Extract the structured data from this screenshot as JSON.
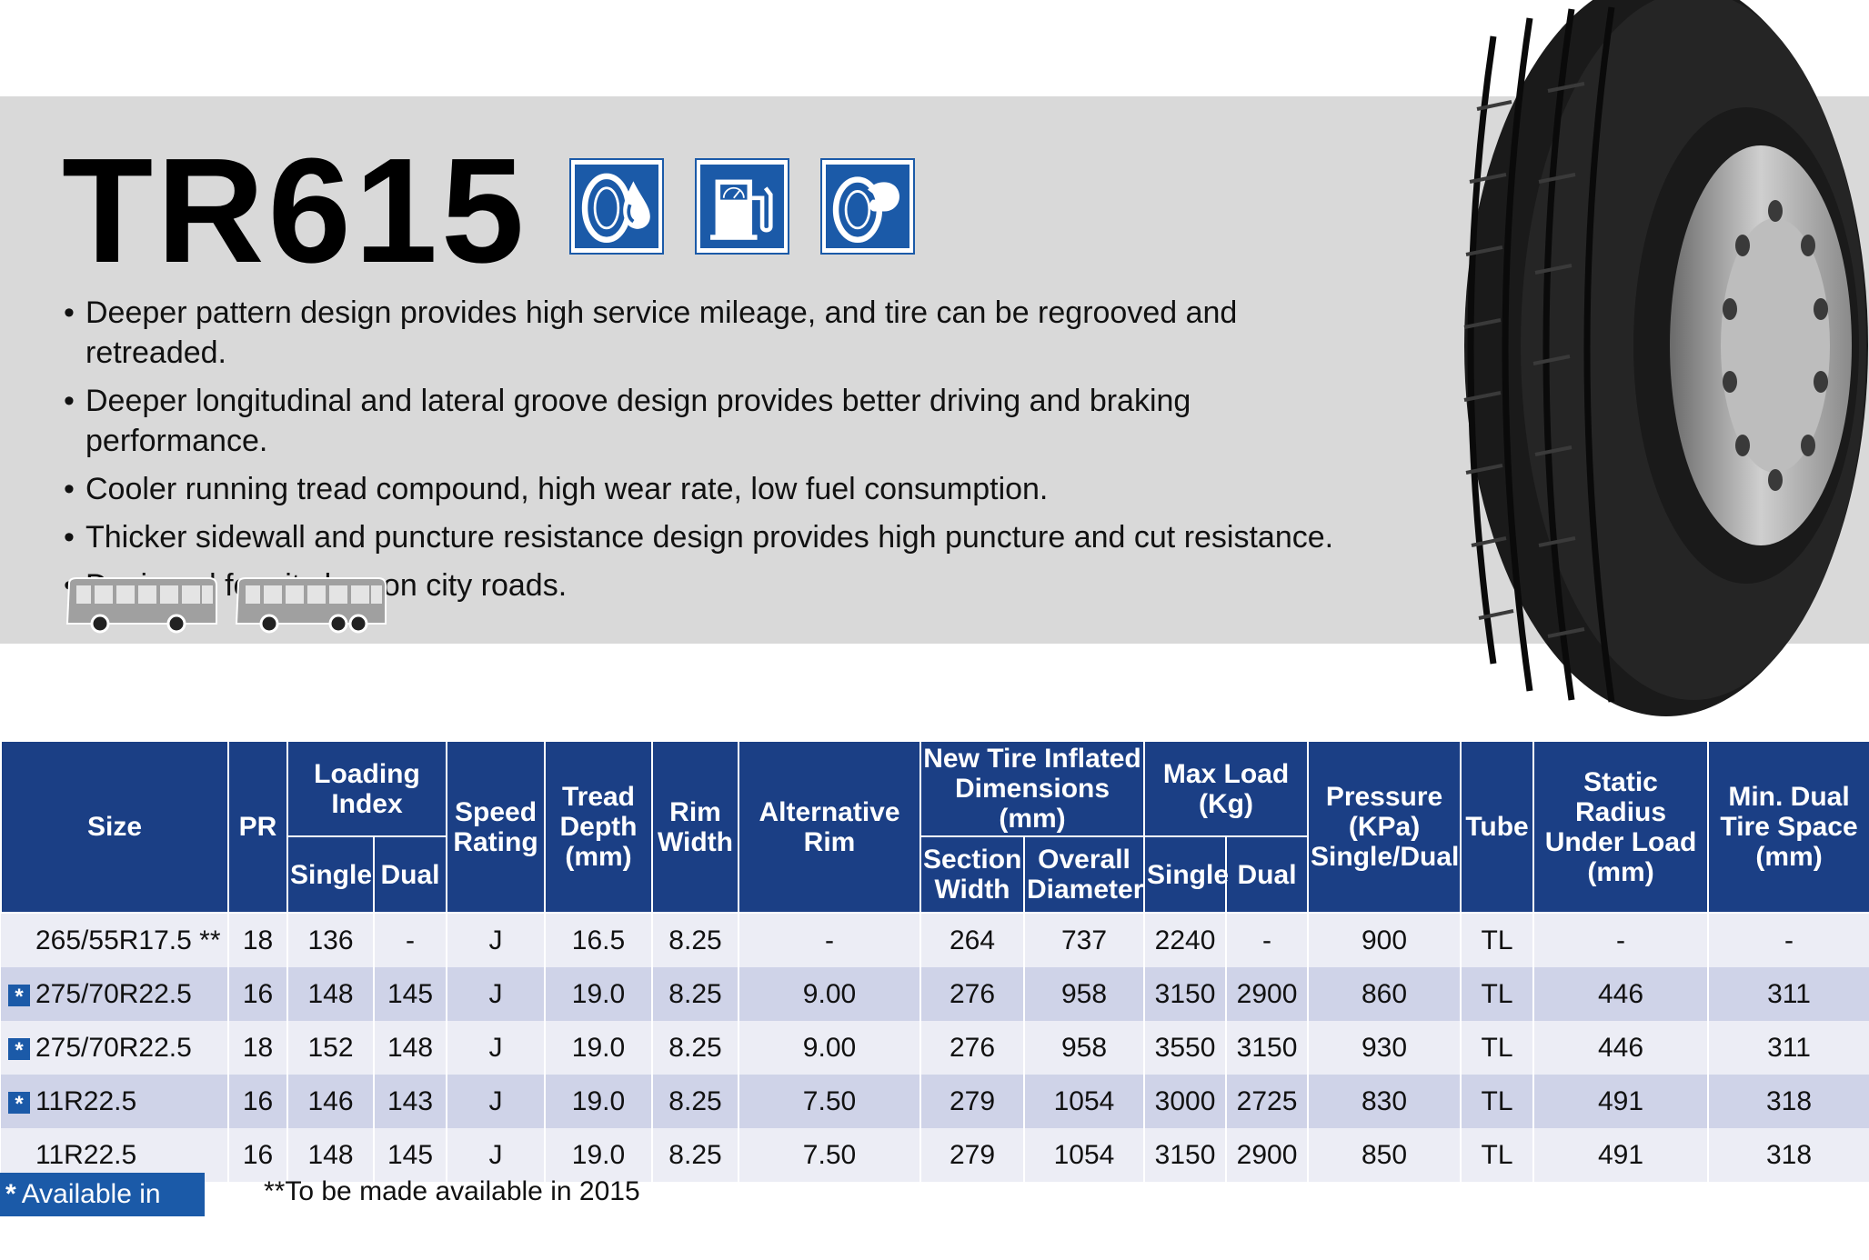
{
  "title": "TR615",
  "feature_icons": [
    "tire-wet-grip-icon",
    "fuel-efficiency-icon",
    "tire-strength-icon"
  ],
  "bullets": [
    "Deeper pattern design provides high service mileage, and tire can be regrooved and retreaded.",
    "Deeper longitudinal and lateral groove design provides better driving and braking performance.",
    "Cooler running tread compound, high wear rate, low fuel consumption.",
    "Thicker sidewall and puncture resistance design provides high puncture and cut resistance.",
    "Designed for city bus on city roads."
  ],
  "vehicle_icons": [
    "city-bus-two-axle-icon",
    "city-bus-three-axle-icon"
  ],
  "colors": {
    "header_blue": "#1b3f85",
    "accent_blue": "#1b5aa8",
    "band_gray": "#d9d9d9",
    "row_light": "#ecedf5",
    "row_dark": "#cfd3e8"
  },
  "table": {
    "headers": {
      "size": "Size",
      "pr": "PR",
      "loading_index": "Loading Index",
      "li_single": "Single",
      "li_dual": "Dual",
      "speed_rating": "Speed Rating",
      "tread_depth": "Tread Depth (mm)",
      "rim_width": "Rim Width",
      "alt_rim": "Alternative Rim",
      "new_tire_dims": "New Tire Inflated Dimensions (mm)",
      "section_width": "Section Width",
      "overall_diameter": "Overall Diameter",
      "max_load": "Max Load (Kg)",
      "ml_single": "Single",
      "ml_dual": "Dual",
      "pressure": "Pressure (KPa) Single/Dual",
      "tube": "Tube",
      "static_radius": "Static Radius Under Load (mm)",
      "min_dual": "Min. Dual Tire Space (mm)"
    },
    "rows": [
      {
        "eu": false,
        "size": "265/55R17.5 **",
        "pr": "18",
        "li_single": "136",
        "li_dual": "-",
        "speed": "J",
        "tread": "16.5",
        "rim": "8.25",
        "alt_rim": "-",
        "section_width": "264",
        "overall_diameter": "737",
        "ml_single": "2240",
        "ml_dual": "-",
        "pressure": "900",
        "tube": "TL",
        "static_radius": "-",
        "min_dual": "-"
      },
      {
        "eu": true,
        "size": "275/70R22.5",
        "pr": "16",
        "li_single": "148",
        "li_dual": "145",
        "speed": "J",
        "tread": "19.0",
        "rim": "8.25",
        "alt_rim": "9.00",
        "section_width": "276",
        "overall_diameter": "958",
        "ml_single": "3150",
        "ml_dual": "2900",
        "pressure": "860",
        "tube": "TL",
        "static_radius": "446",
        "min_dual": "311"
      },
      {
        "eu": true,
        "size": "275/70R22.5",
        "pr": "18",
        "li_single": "152",
        "li_dual": "148",
        "speed": "J",
        "tread": "19.0",
        "rim": "8.25",
        "alt_rim": "9.00",
        "section_width": "276",
        "overall_diameter": "958",
        "ml_single": "3550",
        "ml_dual": "3150",
        "pressure": "930",
        "tube": "TL",
        "static_radius": "446",
        "min_dual": "311"
      },
      {
        "eu": true,
        "size": "11R22.5",
        "pr": "16",
        "li_single": "146",
        "li_dual": "143",
        "speed": "J",
        "tread": "19.0",
        "rim": "8.25",
        "alt_rim": "7.50",
        "section_width": "279",
        "overall_diameter": "1054",
        "ml_single": "3000",
        "ml_dual": "2725",
        "pressure": "830",
        "tube": "TL",
        "static_radius": "491",
        "min_dual": "318"
      },
      {
        "eu": false,
        "size": "11R22.5",
        "pr": "16",
        "li_single": "148",
        "li_dual": "145",
        "speed": "J",
        "tread": "19.0",
        "rim": "8.25",
        "alt_rim": "7.50",
        "section_width": "279",
        "overall_diameter": "1054",
        "ml_single": "3150",
        "ml_dual": "2900",
        "pressure": "850",
        "tube": "TL",
        "static_radius": "491",
        "min_dual": "318"
      }
    ]
  },
  "legend": {
    "star": "*",
    "eu_label": "Available in EU",
    "note": "**To be made available in 2015"
  }
}
